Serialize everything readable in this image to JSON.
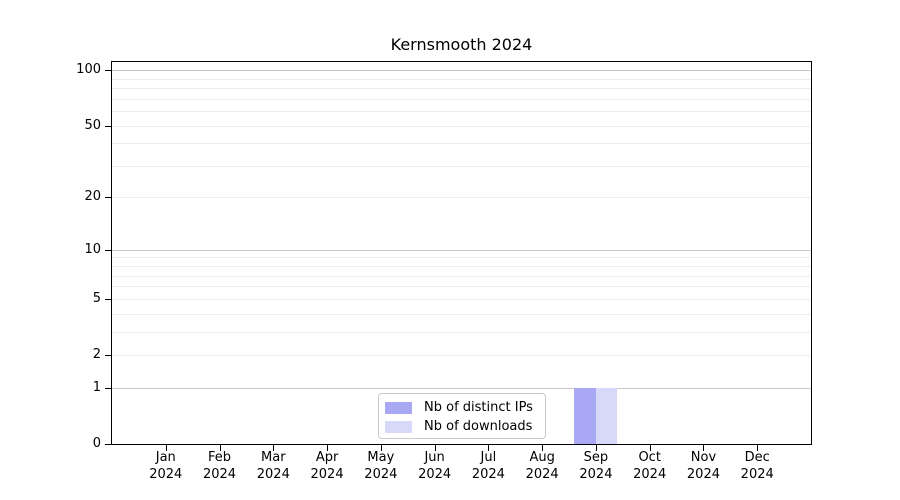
{
  "chart_data": {
    "type": "bar",
    "title": "Kernsmooth 2024",
    "categories": [
      "Jan",
      "Feb",
      "Mar",
      "Apr",
      "May",
      "Jun",
      "Jul",
      "Aug",
      "Sep",
      "Oct",
      "Nov",
      "Dec"
    ],
    "x_tick_year": "2024",
    "series": [
      {
        "name": "Nb of distinct IPs",
        "color": "#a8a8f4",
        "values": [
          0,
          0,
          0,
          0,
          0,
          0,
          0,
          0,
          1,
          0,
          0,
          0
        ]
      },
      {
        "name": "Nb of downloads",
        "color": "#d8d8f8",
        "values": [
          0,
          0,
          0,
          0,
          0,
          0,
          0,
          0,
          1,
          0,
          0,
          0
        ]
      }
    ],
    "y_ticks": [
      0,
      1,
      2,
      5,
      10,
      20,
      50,
      100
    ],
    "y_scale": "log1p",
    "ylim": [
      0,
      110
    ],
    "grid": {
      "major": [
        1,
        10,
        100
      ],
      "minor": [
        2,
        3,
        4,
        5,
        6,
        7,
        8,
        9,
        20,
        30,
        40,
        50,
        60,
        70,
        80,
        90
      ]
    },
    "legend_position": "lower center",
    "grid_on": true
  }
}
